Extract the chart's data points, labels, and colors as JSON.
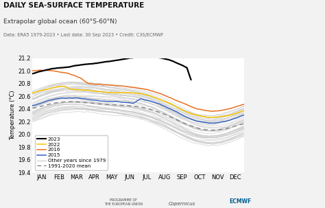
{
  "title": "DAILY SEA-SURFACE TEMPERATURE",
  "subtitle": "Extrapolar global ocean (60°S-60°N)",
  "data_note": "Data: ERA5 1979-2023 • Last data: 30 Sep 2023 • Credit: C3S/ECMWF",
  "ylabel": "Temperature (°C)",
  "ylim": [
    19.4,
    21.2
  ],
  "yticks": [
    19.4,
    19.6,
    19.8,
    20.0,
    20.2,
    20.4,
    20.6,
    20.8,
    21.0,
    21.2
  ],
  "months": [
    "JAN",
    "FEB",
    "MAR",
    "APR",
    "MAY",
    "JUN",
    "JUL",
    "AUG",
    "SEP",
    "OCT",
    "NOV",
    "DEC"
  ],
  "color_2023": "#000000",
  "color_2022": "#f5c400",
  "color_2016": "#e87020",
  "color_2015": "#3060c0",
  "color_other": "#c8c8c8",
  "color_mean": "#808080",
  "bg_color": "#f2f2f2",
  "title_fontsize": 7.5,
  "subtitle_fontsize": 6.5,
  "note_fontsize": 4.8,
  "axis_fontsize": 6.0,
  "legend_fontsize": 5.2
}
